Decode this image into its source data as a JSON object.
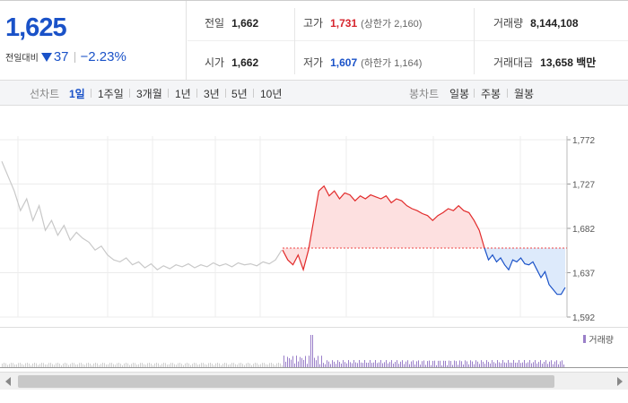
{
  "summary": {
    "price": "1,625",
    "change_label": "전일대비",
    "change_amount": "37",
    "change_pct": "−2.23%"
  },
  "stats": {
    "prev": {
      "label": "전일",
      "value": "1,662"
    },
    "open": {
      "label": "시가",
      "value": "1,662"
    },
    "high": {
      "label": "고가",
      "value": "1,731",
      "extra": "(상한가 2,160)"
    },
    "low": {
      "label": "저가",
      "value": "1,607",
      "extra": "(하한가 1,164)"
    },
    "volume": {
      "label": "거래량",
      "value": "8,144,108"
    },
    "amount": {
      "label": "거래대금",
      "value": "13,658 백만"
    }
  },
  "tabs": {
    "line_label": "선차트",
    "line_items": [
      "1일",
      "1주일",
      "3개월",
      "1년",
      "3년",
      "5년",
      "10년"
    ],
    "candle_label": "봉차트",
    "candle_items": [
      "일봉",
      "주봉",
      "월봉"
    ],
    "active": "1일"
  },
  "chart_data": {
    "type": "line",
    "y_ticks": [
      "1,772",
      "1,727",
      "1,682",
      "1,637",
      "1,592"
    ],
    "y_values": [
      1772,
      1727,
      1682,
      1637,
      1592
    ],
    "ylim": [
      1592,
      1772
    ],
    "prev_close": 1662,
    "grid": true,
    "series": [
      {
        "values": [
          1750,
          1735,
          1720,
          1700,
          1712,
          1690,
          1705,
          1680,
          1690,
          1675,
          1685,
          1670,
          1678,
          1672,
          1668,
          1660,
          1664,
          1655,
          1650,
          1648,
          1652,
          1645,
          1648,
          1642,
          1646,
          1640,
          1644,
          1641,
          1645,
          1643,
          1646,
          1642,
          1645,
          1643,
          1647,
          1644,
          1646,
          1643,
          1647,
          1645,
          1646,
          1644,
          1648,
          1646,
          1650,
          1660
        ]
      },
      {
        "values": [
          1660,
          1650,
          1645,
          1655,
          1640,
          1660,
          1690,
          1720,
          1725,
          1715,
          1720,
          1712,
          1718,
          1716,
          1710,
          1715,
          1712,
          1716,
          1714,
          1712,
          1715,
          1708,
          1712,
          1710,
          1705,
          1702,
          1700,
          1697,
          1695,
          1690,
          1695,
          1698,
          1702,
          1700,
          1705,
          1700,
          1698,
          1690,
          1680,
          1662
        ]
      },
      {
        "values": [
          1662,
          1650,
          1655,
          1648,
          1652,
          1645,
          1640,
          1650,
          1648,
          1652,
          1646,
          1645,
          1648,
          1640,
          1632,
          1638,
          1625,
          1620,
          1615,
          1615,
          1622
        ]
      }
    ]
  },
  "volume_legend": "거래량",
  "colors": {
    "up": "#e22b2b",
    "down": "#1a52c8",
    "pre": "#c8c8c8",
    "vol": "#9a7fc9"
  }
}
